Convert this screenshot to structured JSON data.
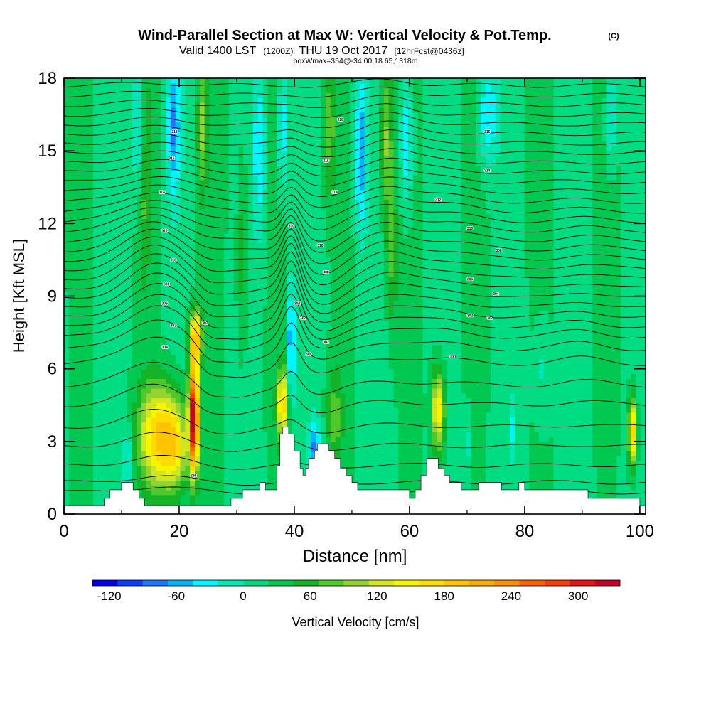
{
  "chart_data": {
    "type": "heatmap",
    "title": "Wind-Parallel Section at Max W: Vertical Velocity & Pot.Temp.",
    "copyright": "(C)",
    "subtitle": {
      "valid": "Valid 1400 LST",
      "utc": "(1200Z)",
      "date": "THU 19 Oct 2017",
      "forecast": "[12hrFcst@0436z]"
    },
    "box_info": "boxWmax=354@-34.00,18.65,1318m",
    "xlabel": "Distance [nm]",
    "ylabel": "Height [Kft MSL]",
    "xlim": [
      0,
      101
    ],
    "ylim": [
      0,
      18
    ],
    "x_ticks": [
      "0",
      "20",
      "40",
      "60",
      "80",
      "100"
    ],
    "y_ticks": [
      "0",
      "3",
      "6",
      "9",
      "12",
      "15",
      "18"
    ],
    "colorbar": {
      "label": "Vertical Velocity [cm/s]",
      "tick_labels": [
        "-120",
        "-60",
        "0",
        "60",
        "120",
        "180",
        "240",
        "300"
      ],
      "colors": [
        "#0000e6",
        "#0a3cff",
        "#1e78ff",
        "#00b4ff",
        "#00f5ff",
        "#00e6b4",
        "#00dc82",
        "#00c850",
        "#14b428",
        "#50c828",
        "#96d232",
        "#d2e61e",
        "#f5f500",
        "#ffdc00",
        "#ffc300",
        "#ffaa00",
        "#ff8c00",
        "#ff6400",
        "#ff3c00",
        "#e61414",
        "#c80028"
      ]
    },
    "background_w": 20,
    "updrafts": [
      {
        "x": 16.5,
        "z": 3.2,
        "sx": 2.4,
        "sz": 1.5,
        "w": 165
      },
      {
        "x": 22.5,
        "z": 4.0,
        "sx": 0.6,
        "sz": 1.6,
        "w": 320
      },
      {
        "x": 19.5,
        "z": 2.8,
        "sx": 1.4,
        "sz": 1.3,
        "w": 90
      },
      {
        "x": 22.8,
        "z": 7.3,
        "sx": 0.8,
        "sz": 0.8,
        "w": 160
      },
      {
        "x": 38.0,
        "z": 4.5,
        "sx": 0.7,
        "sz": 1.1,
        "w": 150
      },
      {
        "x": 65.0,
        "z": 4.3,
        "sx": 0.8,
        "sz": 1.2,
        "w": 140
      },
      {
        "x": 98.7,
        "z": 3.4,
        "sx": 0.5,
        "sz": 1.0,
        "w": 170
      },
      {
        "x": 47.0,
        "z": 4.0,
        "sx": 1.0,
        "sz": 1.5,
        "w": 55
      },
      {
        "x": 56.0,
        "z": 15.5,
        "sx": 0.8,
        "sz": 2.5,
        "w": 80
      },
      {
        "x": 57.0,
        "z": 10.5,
        "sx": 0.7,
        "sz": 2.0,
        "w": 50
      },
      {
        "x": 14.0,
        "z": 14.0,
        "sx": 0.7,
        "sz": 3.0,
        "w": 50
      },
      {
        "x": 24.0,
        "z": 16.0,
        "sx": 0.6,
        "sz": 2.0,
        "w": 70
      },
      {
        "x": 46.0,
        "z": 16.0,
        "sx": 0.8,
        "sz": 2.0,
        "w": 60
      },
      {
        "x": 31.0,
        "z": 11.0,
        "sx": 0.7,
        "sz": 3.0,
        "w": 45
      }
    ],
    "downdrafts": [
      {
        "x": 11.0,
        "z": 2.3,
        "sx": 0.5,
        "sz": 0.9,
        "w": -70
      },
      {
        "x": 39.5,
        "z": 7.0,
        "sx": 0.4,
        "sz": 2.0,
        "w": -110
      },
      {
        "x": 43.5,
        "z": 2.8,
        "sx": 0.7,
        "sz": 0.8,
        "w": -85
      },
      {
        "x": 13.0,
        "z": 16.0,
        "sx": 0.8,
        "sz": 2.0,
        "w": -70
      },
      {
        "x": 19.0,
        "z": 16.0,
        "sx": 0.8,
        "sz": 2.0,
        "w": -80
      },
      {
        "x": 34.0,
        "z": 15.0,
        "sx": 0.8,
        "sz": 2.5,
        "w": -60
      },
      {
        "x": 38.0,
        "z": 16.0,
        "sx": 0.6,
        "sz": 2.0,
        "w": -70
      },
      {
        "x": 51.5,
        "z": 15.0,
        "sx": 0.8,
        "sz": 2.5,
        "w": -80
      },
      {
        "x": 59.5,
        "z": 15.5,
        "sx": 0.8,
        "sz": 2.0,
        "w": -75
      },
      {
        "x": 73.5,
        "z": 16.5,
        "sx": 1.2,
        "sz": 1.5,
        "w": -70
      },
      {
        "x": 95.0,
        "z": 16.5,
        "sx": 0.7,
        "sz": 1.5,
        "w": -60
      },
      {
        "x": 78.0,
        "z": 3.5,
        "sx": 0.4,
        "sz": 1.0,
        "w": -45
      },
      {
        "x": 70.0,
        "z": 3.0,
        "sx": 0.5,
        "sz": 0.9,
        "w": -35
      },
      {
        "x": 83.0,
        "z": 6.0,
        "sx": 1.0,
        "sz": 1.5,
        "w": -30
      }
    ],
    "terrain": [
      [
        0,
        0.35
      ],
      [
        7,
        0.35
      ],
      [
        7,
        0.65
      ],
      [
        8,
        0.65
      ],
      [
        8,
        1.0
      ],
      [
        10,
        1.0
      ],
      [
        10,
        1.3
      ],
      [
        12,
        1.3
      ],
      [
        12,
        1.0
      ],
      [
        13,
        1.0
      ],
      [
        13,
        0.65
      ],
      [
        14,
        0.65
      ],
      [
        14,
        0.35
      ],
      [
        23.5,
        0.35
      ],
      [
        23.5,
        0.35
      ],
      [
        29,
        0.35
      ],
      [
        29,
        0.65
      ],
      [
        31,
        0.65
      ],
      [
        31,
        1.0
      ],
      [
        34,
        1.0
      ],
      [
        34,
        1.3
      ],
      [
        35,
        1.3
      ],
      [
        35,
        1.0
      ],
      [
        37,
        1.0
      ],
      [
        37,
        2.0
      ],
      [
        37.5,
        2.0
      ],
      [
        37.5,
        3.3
      ],
      [
        38,
        3.3
      ],
      [
        38,
        3.6
      ],
      [
        39,
        3.6
      ],
      [
        39,
        3.3
      ],
      [
        40,
        3.3
      ],
      [
        40,
        2.6
      ],
      [
        41,
        2.6
      ],
      [
        41,
        1.9
      ],
      [
        41.5,
        1.9
      ],
      [
        41.5,
        1.6
      ],
      [
        42,
        1.6
      ],
      [
        42,
        1.9
      ],
      [
        42.5,
        1.9
      ],
      [
        42.5,
        2.3
      ],
      [
        43.5,
        2.3
      ],
      [
        43.5,
        2.6
      ],
      [
        44,
        2.6
      ],
      [
        44,
        2.9
      ],
      [
        46,
        2.9
      ],
      [
        46,
        2.6
      ],
      [
        47,
        2.6
      ],
      [
        47,
        2.3
      ],
      [
        48,
        2.3
      ],
      [
        48,
        1.9
      ],
      [
        49,
        1.9
      ],
      [
        49,
        1.6
      ],
      [
        50,
        1.6
      ],
      [
        50,
        1.3
      ],
      [
        51,
        1.3
      ],
      [
        51,
        1.0
      ],
      [
        60,
        1.0
      ],
      [
        60,
        0.65
      ],
      [
        61,
        0.65
      ],
      [
        61,
        1.0
      ],
      [
        62,
        1.0
      ],
      [
        62,
        1.6
      ],
      [
        63,
        1.6
      ],
      [
        63,
        2.3
      ],
      [
        65,
        2.3
      ],
      [
        65,
        1.9
      ],
      [
        66,
        1.9
      ],
      [
        66,
        1.6
      ],
      [
        67,
        1.6
      ],
      [
        67,
        1.3
      ],
      [
        69,
        1.3
      ],
      [
        69,
        1.0
      ],
      [
        72,
        1.0
      ],
      [
        72,
        1.3
      ],
      [
        76,
        1.3
      ],
      [
        76,
        1.0
      ],
      [
        79,
        1.0
      ],
      [
        79,
        1.3
      ],
      [
        80,
        1.3
      ],
      [
        80,
        1.0
      ],
      [
        91,
        1.0
      ],
      [
        91,
        0.65
      ],
      [
        100,
        0.65
      ],
      [
        100,
        0.35
      ],
      [
        101,
        0.35
      ]
    ],
    "theta_isentropes": {
      "base_heights": [
        0.9,
        1.3,
        2.0,
        2.8,
        3.6,
        4.5,
        5.3,
        6.2,
        6.8,
        7.3,
        7.7,
        8.1,
        8.5,
        8.9,
        9.3,
        9.7,
        10.1,
        10.5,
        10.9,
        11.3,
        11.7,
        12.1,
        12.5,
        12.9,
        13.3,
        13.7,
        14.1,
        14.5,
        14.9,
        15.3,
        15.7,
        16.1,
        16.5,
        16.9,
        17.3,
        17.7
      ],
      "perturbations": [
        {
          "x": 16.0,
          "z": 8.5,
          "sx": 5.0,
          "sz": 4.0,
          "dz": 1.4
        },
        {
          "x": 39.5,
          "z": 9.0,
          "sx": 1.5,
          "sz": 3.0,
          "dz": 1.6
        },
        {
          "x": 45.0,
          "z": 9.0,
          "sx": 3.0,
          "sz": 3.5,
          "dz": -0.6
        },
        {
          "x": 56.0,
          "z": 12.0,
          "sx": 4.0,
          "sz": 4.0,
          "dz": 0.7
        },
        {
          "x": 66.0,
          "z": 10.0,
          "sx": 5.0,
          "sz": 3.0,
          "dz": 0.4
        },
        {
          "x": 25.0,
          "z": 7.0,
          "sx": 2.0,
          "sz": 2.0,
          "dz": -0.5
        },
        {
          "x": 30.0,
          "z": 6.0,
          "sx": 3.5,
          "sz": 2.0,
          "dz": -0.6
        },
        {
          "x": 90.0,
          "z": 8.0,
          "sx": 4.0,
          "sz": 3.0,
          "dz": 0.3
        }
      ]
    },
    "contour_labels": [
      {
        "x": 17.5,
        "z": 6.9,
        "text": "304"
      },
      {
        "x": 17.5,
        "z": 8.7,
        "text": "306"
      },
      {
        "x": 17.8,
        "z": 9.5,
        "text": "308"
      },
      {
        "x": 19.0,
        "z": 10.5,
        "text": "310"
      },
      {
        "x": 17.5,
        "z": 11.7,
        "text": "312"
      },
      {
        "x": 17.0,
        "z": 13.3,
        "text": "314"
      },
      {
        "x": 18.7,
        "z": 14.7,
        "text": "316"
      },
      {
        "x": 19.2,
        "z": 15.8,
        "text": "318"
      },
      {
        "x": 19.0,
        "z": 7.8,
        "text": "302"
      },
      {
        "x": 24.5,
        "z": 7.9,
        "text": "302"
      },
      {
        "x": 22.5,
        "z": 1.6,
        "text": "296"
      },
      {
        "x": 39.5,
        "z": 11.9,
        "text": "310"
      },
      {
        "x": 40.5,
        "z": 8.7,
        "text": "304"
      },
      {
        "x": 41.5,
        "z": 8.1,
        "text": "302"
      },
      {
        "x": 42.5,
        "z": 6.6,
        "text": "300"
      },
      {
        "x": 45.5,
        "z": 7.1,
        "text": "302"
      },
      {
        "x": 45.5,
        "z": 10.0,
        "text": "308"
      },
      {
        "x": 44.5,
        "z": 11.1,
        "text": "310"
      },
      {
        "x": 47.0,
        "z": 13.3,
        "text": "314"
      },
      {
        "x": 45.5,
        "z": 14.6,
        "text": "316"
      },
      {
        "x": 48.0,
        "z": 16.3,
        "text": "318"
      },
      {
        "x": 67.5,
        "z": 6.5,
        "text": "300"
      },
      {
        "x": 70.5,
        "z": 8.2,
        "text": "302"
      },
      {
        "x": 74.0,
        "z": 8.1,
        "text": "302"
      },
      {
        "x": 75.0,
        "z": 9.1,
        "text": "304"
      },
      {
        "x": 70.5,
        "z": 9.7,
        "text": "306"
      },
      {
        "x": 75.5,
        "z": 10.9,
        "text": "308"
      },
      {
        "x": 70.5,
        "z": 11.8,
        "text": "310"
      },
      {
        "x": 65.0,
        "z": 13.0,
        "text": "312"
      },
      {
        "x": 73.5,
        "z": 14.2,
        "text": "314"
      },
      {
        "x": 73.5,
        "z": 15.8,
        "text": "316"
      }
    ]
  }
}
